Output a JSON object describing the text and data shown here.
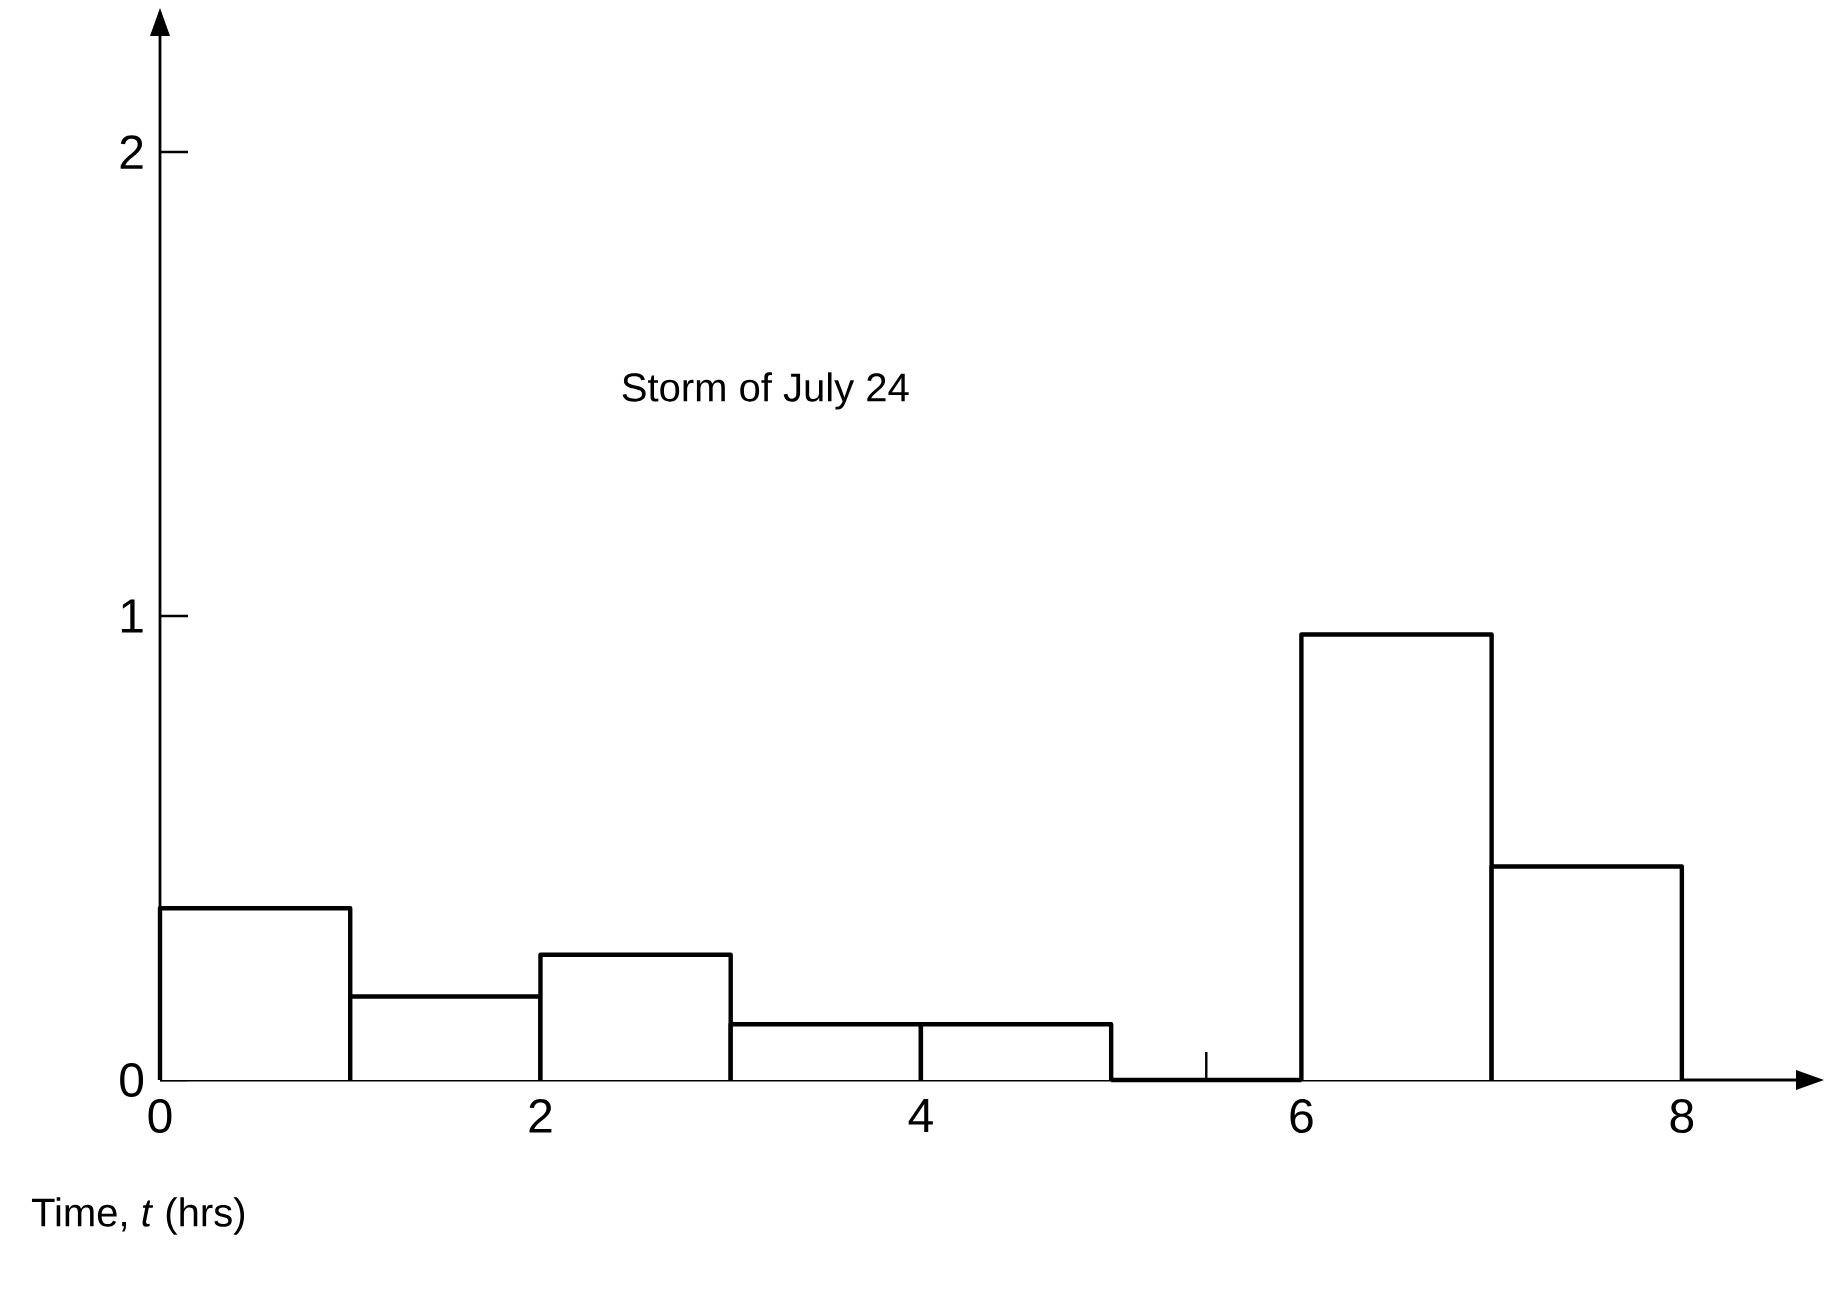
{
  "chart_data": {
    "type": "histogram",
    "bins": [
      0,
      1,
      2,
      3,
      4,
      5,
      6,
      7,
      8
    ],
    "values": [
      0.37,
      0.18,
      0.27,
      0.12,
      0.12,
      0,
      0.96,
      0.46
    ],
    "xlabel": "Time, *t* (hrs)",
    "annotations": [
      "Storm of July 24"
    ],
    "xlim": [
      0,
      8.6
    ],
    "ylim": [
      0,
      2.25
    ],
    "xticks": [
      0,
      {
        "value": 0.5,
        "label": null
      },
      {
        "value": 1,
        "label": null
      },
      {
        "value": 1.5,
        "label": null
      },
      2,
      {
        "value": 2.5,
        "label": null
      },
      {
        "value": 3,
        "label": null
      },
      {
        "value": 3.5,
        "label": null
      },
      4,
      {
        "value": 4.5,
        "label": null
      },
      {
        "value": 5,
        "label": null
      },
      {
        "value": 5.5,
        "label": null
      },
      6,
      {
        "value": 6.5,
        "label": null
      },
      {
        "value": 7,
        "label": null
      },
      {
        "value": 7.5,
        "label": null
      },
      8
    ],
    "yticks": [
      0,
      1,
      2
    ],
    "grid": false
  }
}
